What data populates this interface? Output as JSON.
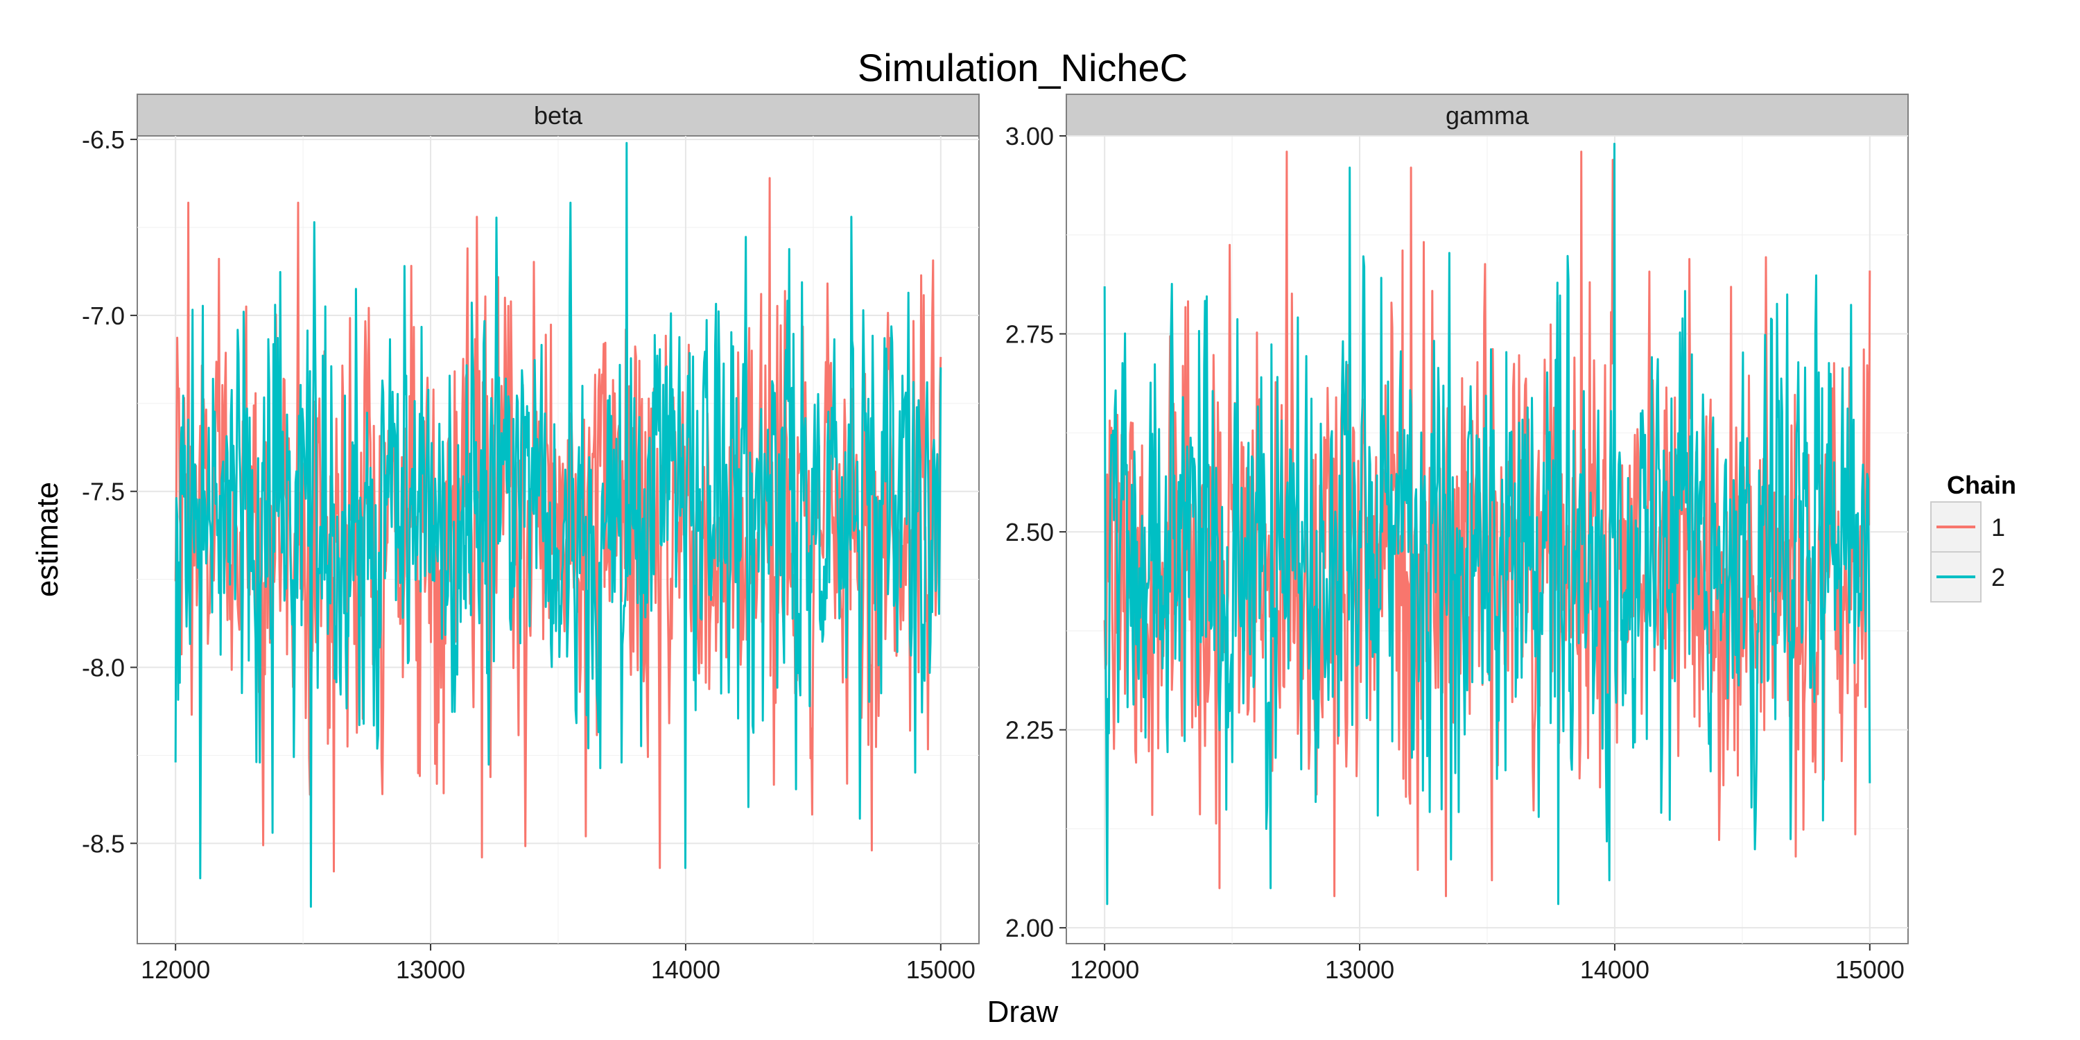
{
  "chart_data": {
    "type": "line",
    "title": "Simulation_NicheC",
    "xlabel": "Draw",
    "ylabel": "estimate",
    "grid": true,
    "legend": {
      "title": "Chain",
      "position": "right",
      "entries": [
        {
          "label": "1",
          "color": "#F8766D"
        },
        {
          "label": "2",
          "color": "#00BFC4"
        }
      ]
    },
    "panels": [
      {
        "strip": "beta",
        "xlim": [
          11850,
          15150
        ],
        "ylim": [
          -8.785,
          -6.49
        ],
        "x_ticks": [
          12000,
          13000,
          14000,
          15000
        ],
        "x_tick_labels": [
          "12000",
          "13000",
          "14000",
          "15000"
        ],
        "y_ticks": [
          -8.5,
          -8.0,
          -7.5,
          -7.0,
          -6.5
        ],
        "y_tick_labels": [
          "-8.5",
          "-8.0",
          "-7.5",
          "-7.0",
          "-6.5"
        ],
        "x_range": [
          12000,
          15000
        ],
        "series": [
          {
            "name": "1",
            "color": "#F8766D",
            "center": -7.58,
            "sd": 0.28,
            "min": -8.58,
            "max": -6.62,
            "spikes": [
              [
                12050,
                -6.68
              ],
              [
                12480,
                -6.68
              ],
              [
                13180,
                -6.72
              ],
              [
                14330,
                -6.61
              ],
              [
                12620,
                -8.58
              ],
              [
                13200,
                -8.54
              ],
              [
                13900,
                -8.57
              ],
              [
                14730,
                -8.52
              ],
              [
                13610,
                -8.48
              ]
            ]
          },
          {
            "name": "2",
            "color": "#00BFC4",
            "center": -7.56,
            "sd": 0.28,
            "min": -8.68,
            "max": -6.51,
            "spikes": [
              [
                13770,
                -6.51
              ],
              [
                13550,
                -6.68
              ],
              [
                14650,
                -6.72
              ],
              [
                12530,
                -8.68
              ],
              [
                14000,
                -8.57
              ],
              [
                12380,
                -8.47
              ],
              [
                12000,
                -8.27
              ]
            ]
          }
        ]
      },
      {
        "strip": "gamma",
        "xlim": [
          11850,
          15150
        ],
        "ylim": [
          1.98,
          3.0
        ],
        "x_ticks": [
          12000,
          13000,
          14000,
          15000
        ],
        "x_tick_labels": [
          "12000",
          "13000",
          "14000",
          "15000"
        ],
        "y_ticks": [
          2.0,
          2.25,
          2.5,
          2.75,
          3.0
        ],
        "y_tick_labels": [
          "2.00",
          "2.25",
          "2.50",
          "2.75",
          "3.00"
        ],
        "x_range": [
          12000,
          15000
        ],
        "series": [
          {
            "name": "1",
            "color": "#F8766D",
            "center": 2.45,
            "sd": 0.14,
            "min": 2.04,
            "max": 2.98,
            "spikes": [
              [
                13870,
                2.98
              ],
              [
                13200,
                2.96
              ],
              [
                12900,
                2.04
              ],
              [
                12450,
                2.05
              ],
              [
                13520,
                2.06
              ],
              [
                14710,
                2.09
              ],
              [
                15000,
                2.83
              ]
            ]
          },
          {
            "name": "2",
            "color": "#00BFC4",
            "center": 2.47,
            "sd": 0.14,
            "min": 2.03,
            "max": 2.99,
            "spikes": [
              [
                14000,
                2.99
              ],
              [
                12960,
                2.96
              ],
              [
                13780,
                2.03
              ],
              [
                12650,
                2.05
              ],
              [
                13980,
                2.06
              ],
              [
                12000,
                2.81
              ]
            ]
          }
        ]
      }
    ]
  }
}
